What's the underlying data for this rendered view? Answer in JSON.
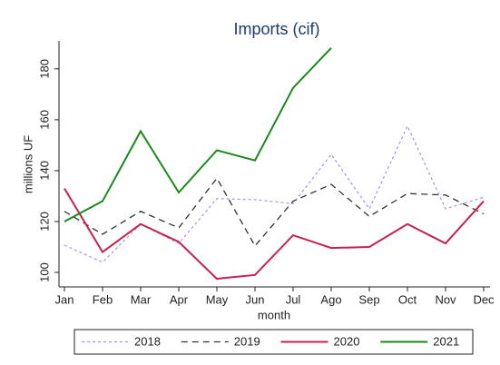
{
  "chart_data": {
    "type": "line",
    "title": "Imports (cif)",
    "x_label": "month",
    "y_label": "millions UF",
    "categories": [
      "Jan",
      "Feb",
      "Mar",
      "Apr",
      "May",
      "Jun",
      "Jul",
      "Ago",
      "Sep",
      "Oct",
      "Nov",
      "Dec"
    ],
    "series": [
      {
        "name": "2018",
        "color": "#9999ee",
        "style": "dotted",
        "values": [
          110.7,
          104,
          119,
          111.4,
          129,
          128.6,
          127,
          146.4,
          125,
          157.5,
          125,
          129.5
        ]
      },
      {
        "name": "2019",
        "color": "#333333",
        "style": "dashed",
        "values": [
          124,
          115,
          124,
          117.5,
          137,
          110.4,
          128,
          134.6,
          122,
          131,
          130.4,
          123
        ]
      },
      {
        "name": "2020",
        "color": "#c8204f",
        "style": "solid",
        "values": [
          133,
          108,
          119,
          112,
          97.5,
          99,
          114.6,
          109.6,
          110,
          119,
          111.4,
          128
        ]
      },
      {
        "name": "2021",
        "color": "#1a8a1a",
        "style": "solid",
        "values": [
          120,
          128,
          155.5,
          131.4,
          148,
          144,
          172.5,
          188.2,
          null,
          null,
          null,
          null
        ]
      }
    ],
    "ylim": [
      94.3,
      191
    ],
    "yticks": [
      100,
      120,
      140,
      160,
      180
    ],
    "grid": false,
    "legend": "bottom"
  }
}
